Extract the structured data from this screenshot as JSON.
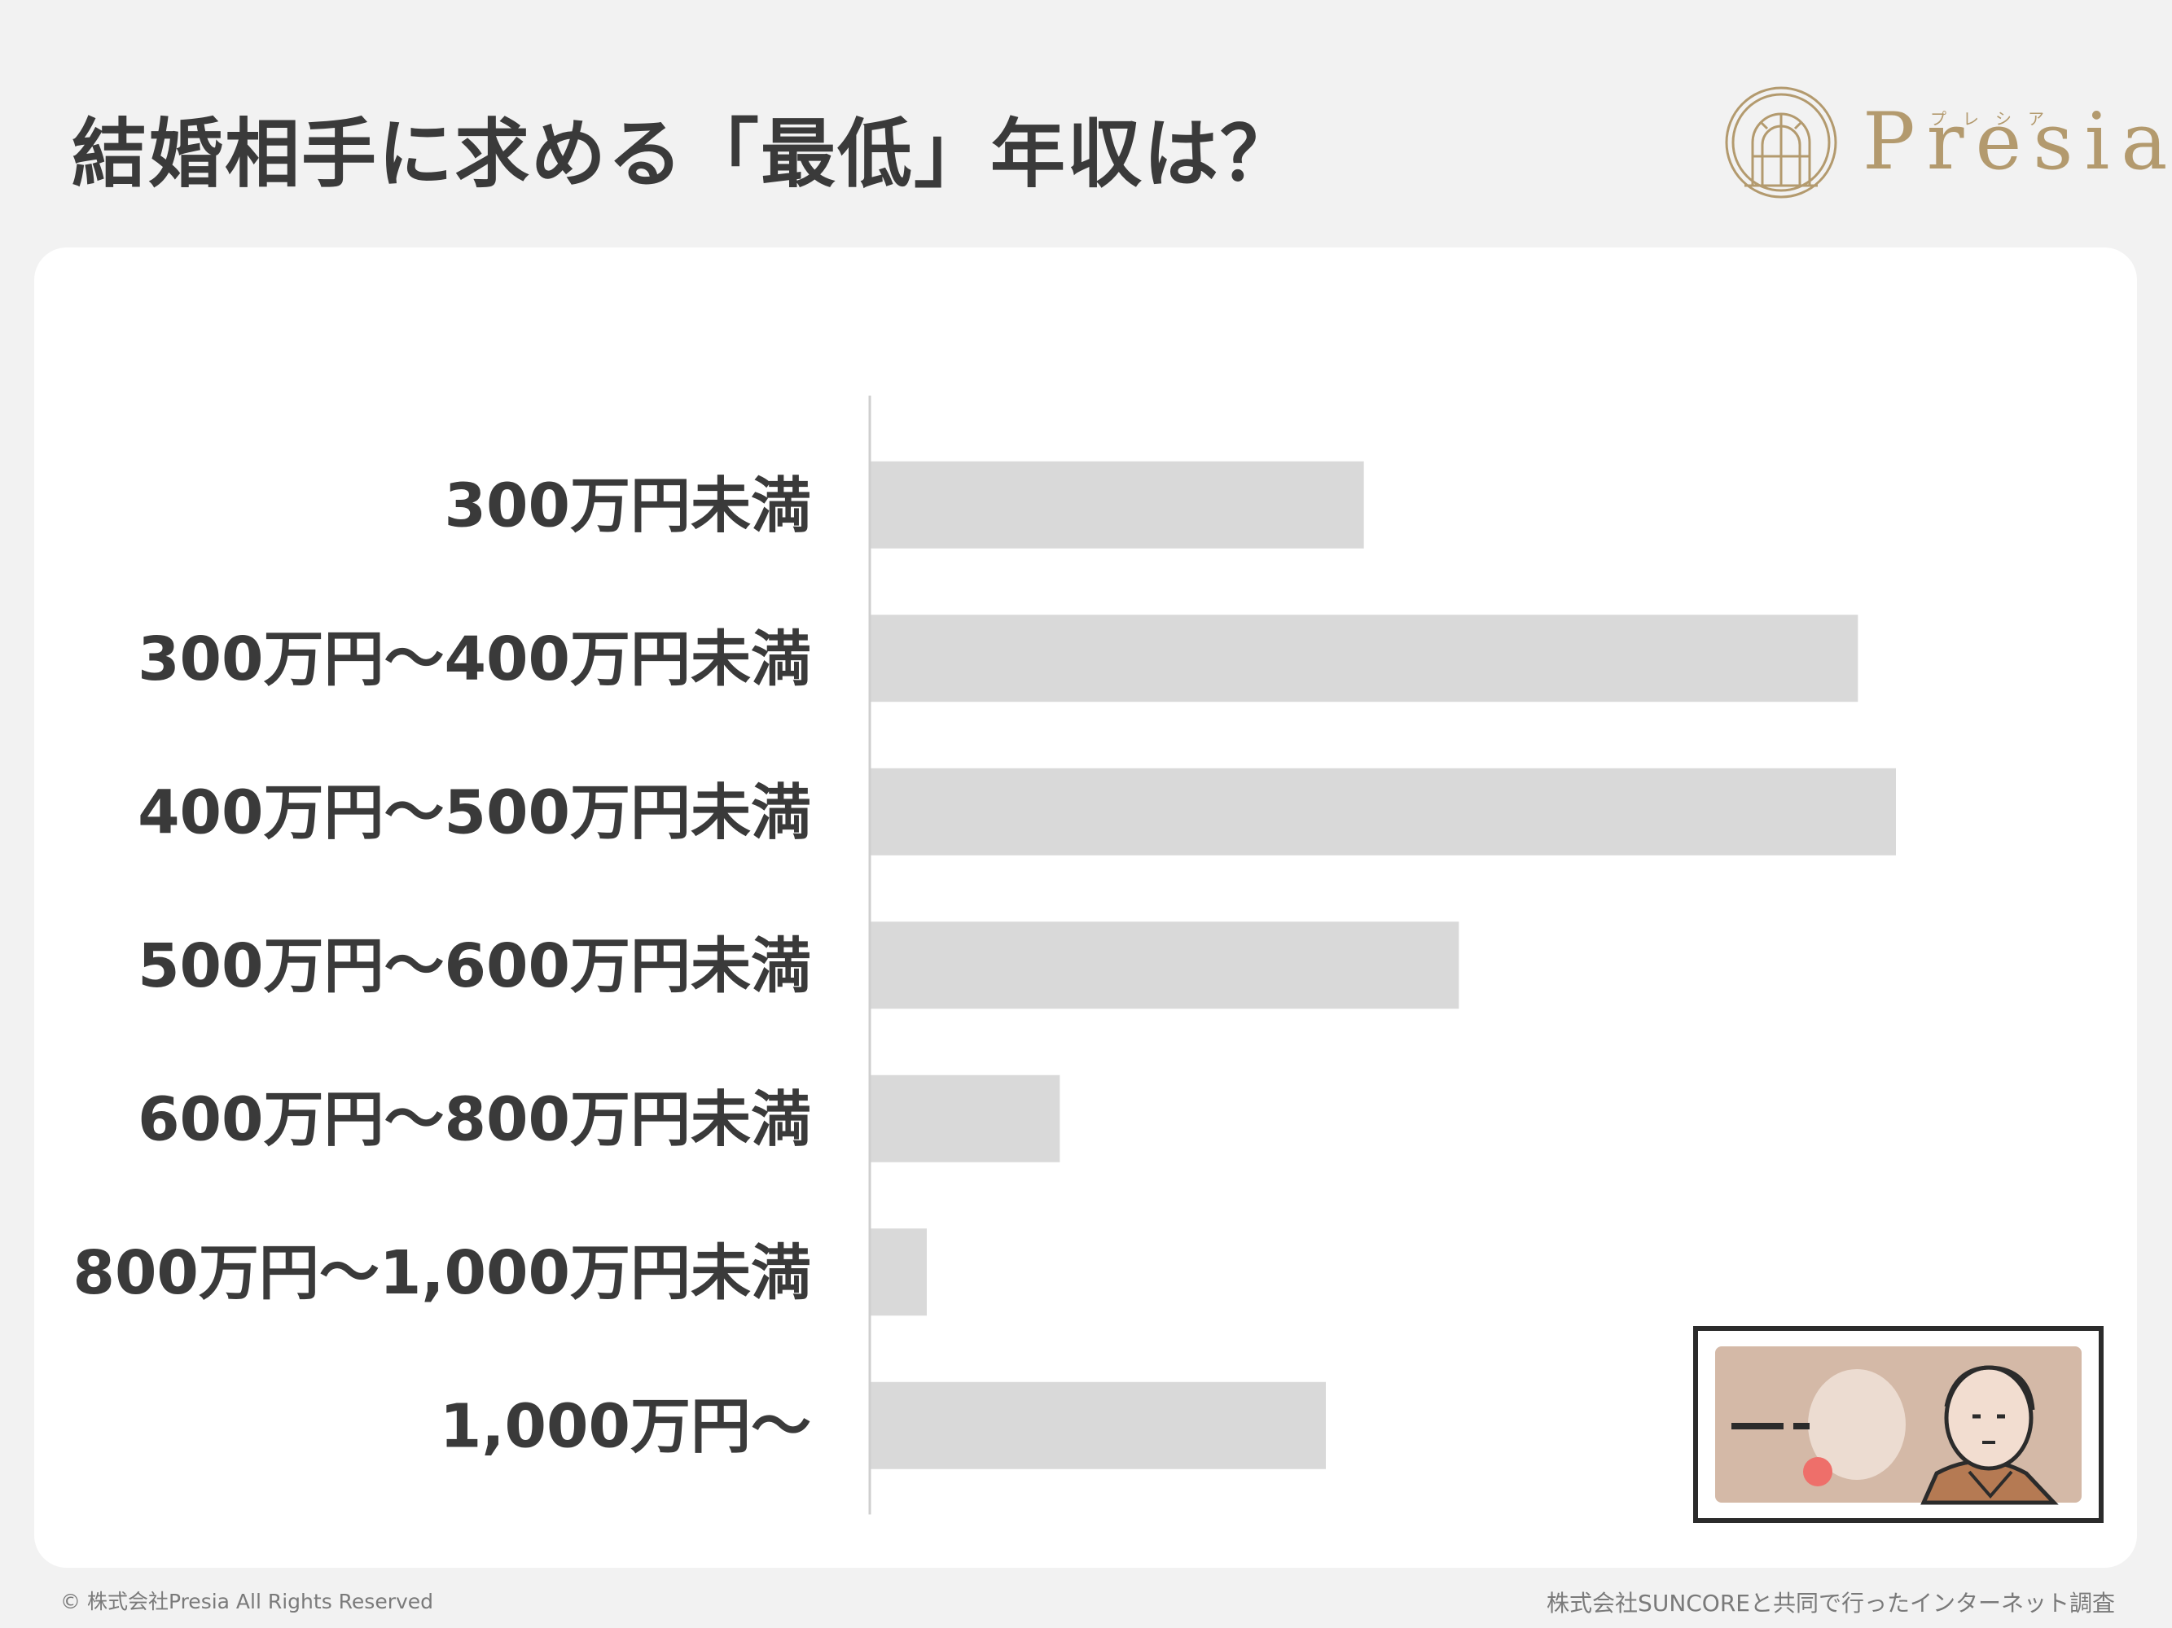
{
  "header": {
    "title": "結婚相手に求める「最低」年収は？"
  },
  "logo": {
    "name": "Presia",
    "kana": "プレシア",
    "color": "#b39a6e"
  },
  "chart_data": {
    "type": "bar",
    "orientation": "horizontal",
    "categories": [
      "300万円未満",
      "300万円〜400万円未満",
      "400万円〜500万円未満",
      "500万円〜600万円未満",
      "600万円〜800万円未満",
      "800万円〜1,000万円未満",
      "1,000万円〜"
    ],
    "values": [
      26,
      52,
      54,
      31,
      10,
      3,
      24
    ],
    "xlim": [
      0,
      60
    ],
    "bar_color": "#d9d9d9",
    "grid": false,
    "data_labels": false
  },
  "illustration": {
    "icon": "banknote-icon"
  },
  "footer": {
    "copyright": "© 株式会社Presia All Rights Reserved",
    "source": "株式会社SUNCOREと共同で行ったインターネット調査"
  }
}
